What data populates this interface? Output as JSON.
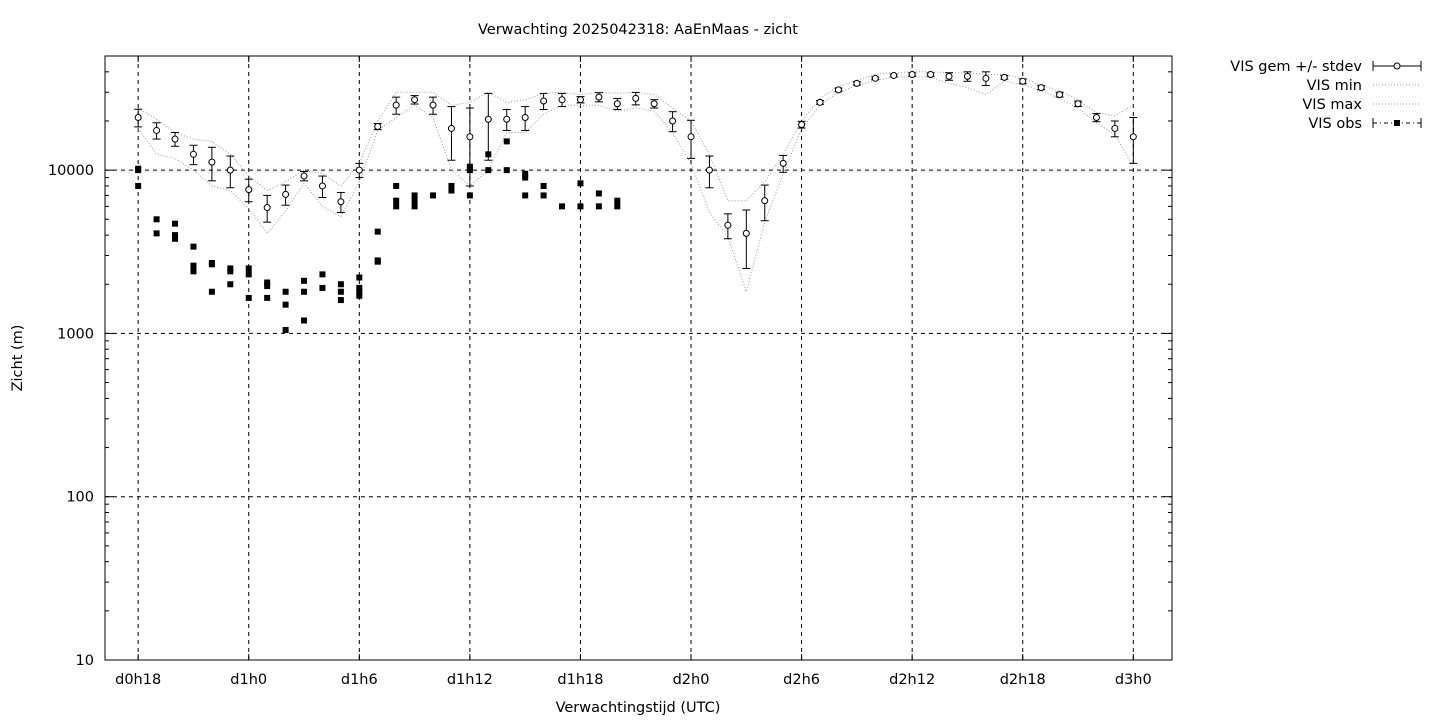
{
  "chart_data": {
    "type": "scatter",
    "title": "Verwachting 2025042318: AaEnMaas - zicht",
    "xlabel": "Verwachtingstijd (UTC)",
    "ylabel": "Zicht (m)",
    "xlim_hours": [
      16.2,
      74.1
    ],
    "ylim": [
      10,
      50000
    ],
    "yscale": "log",
    "grid": true,
    "legend_position": "outside-top-right",
    "x_ticks": [
      {
        "hour": 18,
        "label": "d0h18"
      },
      {
        "hour": 24,
        "label": "d1h0"
      },
      {
        "hour": 30,
        "label": "d1h6"
      },
      {
        "hour": 36,
        "label": "d1h12"
      },
      {
        "hour": 42,
        "label": "d1h18"
      },
      {
        "hour": 48,
        "label": "d2h0"
      },
      {
        "hour": 54,
        "label": "d2h6"
      },
      {
        "hour": 60,
        "label": "d2h12"
      },
      {
        "hour": 66,
        "label": "d2h18"
      },
      {
        "hour": 72,
        "label": "d3h0"
      }
    ],
    "y_ticks": [
      {
        "value": 10,
        "label": "10"
      },
      {
        "value": 100,
        "label": "100"
      },
      {
        "value": 1000,
        "label": "1000"
      },
      {
        "value": 10000,
        "label": "10000"
      }
    ],
    "series": [
      {
        "name": "VIS gem +/- stdev",
        "style": "errorbars-open-circle",
        "points": [
          [
            18,
            21000,
            2600
          ],
          [
            19,
            17500,
            2000
          ],
          [
            20,
            15500,
            1500
          ],
          [
            21,
            12500,
            1700
          ],
          [
            22,
            11200,
            2600
          ],
          [
            23,
            10000,
            2200
          ],
          [
            24,
            7600,
            1200
          ],
          [
            25,
            5900,
            1100
          ],
          [
            26,
            7100,
            1000
          ],
          [
            27,
            9200,
            600
          ],
          [
            28,
            8000,
            1200
          ],
          [
            29,
            6400,
            900
          ],
          [
            30,
            10000,
            1000
          ],
          [
            31,
            18500,
            800
          ],
          [
            32,
            25000,
            3000
          ],
          [
            33,
            27000,
            1600
          ],
          [
            34,
            25000,
            3000
          ],
          [
            35,
            18000,
            6500
          ],
          [
            36,
            16000,
            8000
          ],
          [
            37,
            20500,
            9000
          ],
          [
            38,
            20500,
            3000
          ],
          [
            39,
            21000,
            3500
          ],
          [
            40,
            26500,
            3000
          ],
          [
            41,
            27000,
            2500
          ],
          [
            42,
            27000,
            1200
          ],
          [
            43,
            28000,
            1800
          ],
          [
            44,
            25500,
            2000
          ],
          [
            45,
            27500,
            2400
          ],
          [
            46,
            25500,
            1500
          ],
          [
            47,
            20000,
            2800
          ],
          [
            48,
            16000,
            4200
          ],
          [
            49,
            10000,
            2200
          ],
          [
            50,
            4600,
            800
          ],
          [
            51,
            4100,
            1600
          ],
          [
            52,
            6500,
            1600
          ],
          [
            53,
            11000,
            1300
          ],
          [
            54,
            19000,
            900
          ],
          [
            55,
            26000,
            700
          ],
          [
            56,
            31000,
            800
          ],
          [
            57,
            34000,
            800
          ],
          [
            58,
            36500,
            700
          ],
          [
            59,
            38000,
            700
          ],
          [
            60,
            38500,
            900
          ],
          [
            61,
            38500,
            900
          ],
          [
            62,
            37500,
            2000
          ],
          [
            63,
            37500,
            2500
          ],
          [
            64,
            36500,
            3500
          ],
          [
            65,
            37000,
            900
          ],
          [
            66,
            35000,
            1200
          ],
          [
            67,
            32000,
            900
          ],
          [
            68,
            29000,
            1000
          ],
          [
            69,
            25500,
            1000
          ],
          [
            70,
            21000,
            1200
          ],
          [
            71,
            18000,
            2000
          ],
          [
            72,
            16000,
            5000
          ]
        ]
      },
      {
        "name": "VIS min",
        "style": "dotted-line",
        "points": [
          [
            18,
            18000
          ],
          [
            19,
            12500
          ],
          [
            20,
            11800
          ],
          [
            21,
            10000
          ],
          [
            22,
            8000
          ],
          [
            23,
            7500
          ],
          [
            24,
            5800
          ],
          [
            25,
            4100
          ],
          [
            26,
            5600
          ],
          [
            27,
            8300
          ],
          [
            28,
            6000
          ],
          [
            29,
            5200
          ],
          [
            30,
            8500
          ],
          [
            31,
            17500
          ],
          [
            32,
            21000
          ],
          [
            33,
            25000
          ],
          [
            34,
            21000
          ],
          [
            35,
            10000
          ],
          [
            36,
            8000
          ],
          [
            37,
            10000
          ],
          [
            38,
            17000
          ],
          [
            39,
            17000
          ],
          [
            40,
            22000
          ],
          [
            41,
            25000
          ],
          [
            42,
            25000
          ],
          [
            43,
            25000
          ],
          [
            44,
            23000
          ],
          [
            45,
            24000
          ],
          [
            46,
            23000
          ],
          [
            47,
            17000
          ],
          [
            48,
            11000
          ],
          [
            49,
            5500
          ],
          [
            50,
            3900
          ],
          [
            51,
            1800
          ],
          [
            52,
            4800
          ],
          [
            53,
            9500
          ],
          [
            54,
            18000
          ],
          [
            55,
            25000
          ],
          [
            56,
            30000
          ],
          [
            57,
            33000
          ],
          [
            58,
            35500
          ],
          [
            59,
            37000
          ],
          [
            60,
            37500
          ],
          [
            61,
            37000
          ],
          [
            62,
            34000
          ],
          [
            63,
            32000
          ],
          [
            64,
            29000
          ],
          [
            65,
            35000
          ],
          [
            66,
            33500
          ],
          [
            67,
            30500
          ],
          [
            68,
            27500
          ],
          [
            69,
            24000
          ],
          [
            70,
            19500
          ],
          [
            71,
            16500
          ],
          [
            72,
            10500
          ]
        ]
      },
      {
        "name": "VIS max",
        "style": "dotted-line",
        "points": [
          [
            18,
            24000
          ],
          [
            19,
            20500
          ],
          [
            20,
            17000
          ],
          [
            21,
            15500
          ],
          [
            22,
            15000
          ],
          [
            23,
            12500
          ],
          [
            24,
            9200
          ],
          [
            25,
            7500
          ],
          [
            26,
            8500
          ],
          [
            27,
            10000
          ],
          [
            28,
            9500
          ],
          [
            29,
            8000
          ],
          [
            30,
            11000
          ],
          [
            31,
            20000
          ],
          [
            32,
            30000
          ],
          [
            33,
            30000
          ],
          [
            34,
            30000
          ],
          [
            35,
            25000
          ],
          [
            36,
            26000
          ],
          [
            37,
            30000
          ],
          [
            38,
            26000
          ],
          [
            39,
            27000
          ],
          [
            40,
            29500
          ],
          [
            41,
            30000
          ],
          [
            42,
            29000
          ],
          [
            43,
            30000
          ],
          [
            44,
            29500
          ],
          [
            45,
            30000
          ],
          [
            46,
            29000
          ],
          [
            47,
            24000
          ],
          [
            48,
            20000
          ],
          [
            49,
            12500
          ],
          [
            50,
            6500
          ],
          [
            51,
            6500
          ],
          [
            52,
            8500
          ],
          [
            53,
            12500
          ],
          [
            54,
            20000
          ],
          [
            55,
            27500
          ],
          [
            56,
            32500
          ],
          [
            57,
            35500
          ],
          [
            58,
            38500
          ],
          [
            59,
            39500
          ],
          [
            60,
            40000
          ],
          [
            61,
            40000
          ],
          [
            62,
            39500
          ],
          [
            63,
            39500
          ],
          [
            64,
            38500
          ],
          [
            65,
            38500
          ],
          [
            66,
            36500
          ],
          [
            67,
            33000
          ],
          [
            68,
            30500
          ],
          [
            69,
            27000
          ],
          [
            70,
            22500
          ],
          [
            71,
            21500
          ],
          [
            72,
            25000
          ]
        ]
      },
      {
        "name": "VIS obs",
        "style": "filled-square",
        "points": [
          [
            18,
            10200
          ],
          [
            18,
            10000
          ],
          [
            18,
            8000
          ],
          [
            19,
            5000
          ],
          [
            19,
            4100
          ],
          [
            20,
            4700
          ],
          [
            20,
            4000
          ],
          [
            20,
            3800
          ],
          [
            21,
            3400
          ],
          [
            21,
            2600
          ],
          [
            21,
            2400
          ],
          [
            22,
            2700
          ],
          [
            22,
            2650
          ],
          [
            22,
            1800
          ],
          [
            23,
            2500
          ],
          [
            23,
            2400
          ],
          [
            23,
            2000
          ],
          [
            24,
            2500
          ],
          [
            24,
            2300
          ],
          [
            24,
            1650
          ],
          [
            25,
            2050
          ],
          [
            25,
            1950
          ],
          [
            25,
            1650
          ],
          [
            26,
            1800
          ],
          [
            26,
            1500
          ],
          [
            26,
            1050
          ],
          [
            27,
            2100
          ],
          [
            27,
            1800
          ],
          [
            27,
            1200
          ],
          [
            28,
            2300
          ],
          [
            28,
            1900
          ],
          [
            29,
            2000
          ],
          [
            29,
            1800
          ],
          [
            29,
            1600
          ],
          [
            30,
            2200
          ],
          [
            30,
            1900
          ],
          [
            30,
            1800
          ],
          [
            30,
            1700
          ],
          [
            31,
            4200
          ],
          [
            31,
            2800
          ],
          [
            31,
            2750
          ],
          [
            32,
            8000
          ],
          [
            32,
            6500
          ],
          [
            32,
            6000
          ],
          [
            33,
            7000
          ],
          [
            33,
            6500
          ],
          [
            33,
            6000
          ],
          [
            34,
            7000
          ],
          [
            35,
            8000
          ],
          [
            35,
            7500
          ],
          [
            36,
            10500
          ],
          [
            36,
            10000
          ],
          [
            36,
            7000
          ],
          [
            37,
            12500
          ],
          [
            37,
            10000
          ],
          [
            38,
            15000
          ],
          [
            38,
            10000
          ],
          [
            39,
            9500
          ],
          [
            39,
            9000
          ],
          [
            39,
            7000
          ],
          [
            40,
            8000
          ],
          [
            40,
            7000
          ],
          [
            41,
            6000
          ],
          [
            42,
            8300
          ],
          [
            42,
            6000
          ],
          [
            43,
            7200
          ],
          [
            43,
            6000
          ],
          [
            44,
            6500
          ],
          [
            44,
            6000
          ]
        ]
      }
    ]
  },
  "legend": {
    "items": [
      {
        "label": "VIS gem +/- stdev",
        "icon": "errorbar-circle-icon"
      },
      {
        "label": "VIS min",
        "icon": "dotted-line-icon"
      },
      {
        "label": "VIS max",
        "icon": "dotted-line-icon"
      },
      {
        "label": "VIS obs",
        "icon": "square-dashdot-icon"
      }
    ]
  }
}
